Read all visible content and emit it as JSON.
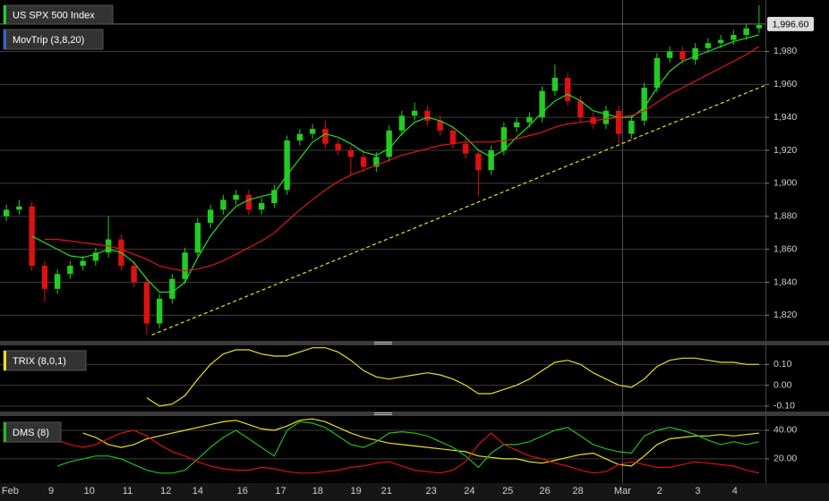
{
  "chart_data": [
    {
      "type": "candlestick",
      "title": "US SPX 500 Index",
      "indicator": "MovTrip (3,8,20)",
      "xlim": [
        -0.5,
        59.5
      ],
      "xticks": [
        {
          "value": 0.3,
          "label": "Feb"
        },
        {
          "value": 3.5,
          "label": "9"
        },
        {
          "value": 6.5,
          "label": "10"
        },
        {
          "value": 9.5,
          "label": "11"
        },
        {
          "value": 12.5,
          "label": "12"
        },
        {
          "value": 15,
          "label": "14"
        },
        {
          "value": 18.5,
          "label": "16"
        },
        {
          "value": 21.5,
          "label": "17"
        },
        {
          "value": 24.4,
          "label": "18"
        },
        {
          "value": 27.4,
          "label": "19"
        },
        {
          "value": 29.8,
          "label": "21"
        },
        {
          "value": 33.3,
          "label": "23"
        },
        {
          "value": 36.3,
          "label": "24"
        },
        {
          "value": 39.3,
          "label": "25"
        },
        {
          "value": 42.2,
          "label": "26"
        },
        {
          "value": 44.8,
          "label": "28"
        },
        {
          "value": 48.3,
          "label": "Mar"
        },
        {
          "value": 51.2,
          "label": "2"
        },
        {
          "value": 54.2,
          "label": "3"
        },
        {
          "value": 57.1,
          "label": "4"
        }
      ],
      "ylim": [
        1805,
        2009
      ],
      "yticks": [
        {
          "value": 1820,
          "label": "1,820"
        },
        {
          "value": 1840,
          "label": "1,840"
        },
        {
          "value": 1860,
          "label": "1,860"
        },
        {
          "value": 1880,
          "label": "1,880"
        },
        {
          "value": 1900,
          "label": "1,900"
        },
        {
          "value": 1920,
          "label": "1,920"
        },
        {
          "value": 1940,
          "label": "1,940"
        },
        {
          "value": 1960,
          "label": "1,960"
        },
        {
          "value": 1980,
          "label": "1,980"
        }
      ],
      "up_color": "#22cc22",
      "down_color": "#dd1111",
      "open": [
        1880,
        1884,
        1886,
        1850,
        1836,
        1845,
        1850,
        1853,
        1858,
        1866,
        1850,
        1840,
        1815,
        1830,
        1842,
        1858,
        1876,
        1884,
        1890,
        1893,
        1884,
        1888,
        1896,
        1926,
        1930,
        1933,
        1924,
        1920,
        1916,
        1910,
        1916,
        1932,
        1941,
        1944,
        1938,
        1932,
        1924,
        1918,
        1908,
        1920,
        1934,
        1937,
        1940,
        1956,
        1964,
        1950,
        1940,
        1936,
        1944,
        1930,
        1938,
        1958,
        1976,
        1980,
        1975,
        1982,
        1985,
        1987,
        1990,
        1994
      ],
      "high": [
        1887,
        1890,
        1889,
        1853,
        1848,
        1853,
        1856,
        1861,
        1880,
        1869,
        1853,
        1843,
        1833,
        1845,
        1861,
        1879,
        1887,
        1893,
        1896,
        1896,
        1891,
        1899,
        1929,
        1933,
        1936,
        1938,
        1927,
        1923,
        1919,
        1919,
        1935,
        1944,
        1949,
        1947,
        1941,
        1935,
        1927,
        1921,
        1923,
        1937,
        1940,
        1943,
        1959,
        1972,
        1967,
        1953,
        1943,
        1947,
        1947,
        1941,
        1961,
        1979,
        1983,
        1983,
        1985,
        1988,
        1990,
        1993,
        1997,
        2008
      ],
      "low": [
        1877,
        1881,
        1847,
        1828,
        1833,
        1842,
        1847,
        1850,
        1855,
        1847,
        1837,
        1808,
        1812,
        1827,
        1839,
        1855,
        1873,
        1881,
        1887,
        1881,
        1881,
        1885,
        1893,
        1923,
        1927,
        1921,
        1917,
        1905,
        1907,
        1907,
        1913,
        1929,
        1938,
        1935,
        1929,
        1921,
        1915,
        1892,
        1905,
        1917,
        1931,
        1934,
        1937,
        1953,
        1947,
        1937,
        1933,
        1933,
        1924,
        1927,
        1935,
        1955,
        1973,
        1972,
        1972,
        1979,
        1982,
        1984,
        1987,
        1991
      ],
      "close": [
        1884,
        1886,
        1850,
        1836,
        1845,
        1850,
        1853,
        1858,
        1866,
        1850,
        1840,
        1815,
        1830,
        1842,
        1858,
        1876,
        1884,
        1890,
        1893,
        1884,
        1888,
        1896,
        1926,
        1930,
        1933,
        1924,
        1920,
        1916,
        1910,
        1916,
        1932,
        1941,
        1944,
        1938,
        1932,
        1924,
        1918,
        1908,
        1920,
        1934,
        1937,
        1940,
        1956,
        1964,
        1950,
        1940,
        1936,
        1944,
        1930,
        1938,
        1958,
        1976,
        1980,
        1975,
        1982,
        1985,
        1987,
        1990,
        1994,
        1996
      ],
      "overlays": [
        {
          "color": "#22dd22",
          "values": [
            null,
            null,
            1868,
            1864,
            1860,
            1856,
            1855,
            1857,
            1860,
            1858,
            1852,
            1842,
            1834,
            1834,
            1840,
            1855,
            1868,
            1878,
            1886,
            1890,
            1892,
            1894,
            1905,
            1915,
            1925,
            1930,
            1928,
            1924,
            1919,
            1917,
            1921,
            1930,
            1937,
            1940,
            1938,
            1934,
            1928,
            1920,
            1916,
            1920,
            1928,
            1935,
            1943,
            1950,
            1954,
            1950,
            1944,
            1942,
            1940,
            1940,
            1946,
            1958,
            1968,
            1974,
            1977,
            1980,
            1983,
            1986,
            1988,
            1990
          ]
        },
        {
          "color": "#e01818",
          "values": [
            null,
            null,
            null,
            1866,
            1866,
            1865,
            1864,
            1863,
            1862,
            1860,
            1857,
            1854,
            1850,
            1848,
            1847,
            1848,
            1850,
            1853,
            1857,
            1861,
            1865,
            1870,
            1877,
            1884,
            1890,
            1896,
            1901,
            1905,
            1908,
            1911,
            1914,
            1917,
            1919,
            1921,
            1923,
            1924,
            1925,
            1925,
            1925,
            1926,
            1927,
            1929,
            1931,
            1934,
            1936,
            1937,
            1938,
            1939,
            1940,
            1941,
            1944,
            1949,
            1954,
            1958,
            1962,
            1966,
            1970,
            1974,
            1978,
            1983
          ]
        }
      ],
      "trendline": {
        "color": "#e8e020",
        "x": [
          11.4,
          59.5
        ],
        "y": [
          1808,
          1959.5
        ]
      },
      "last_value": 1996.6,
      "last_label": "1,996.60",
      "grid": true
    },
    {
      "type": "line",
      "title": "TRIX (8,0,1)",
      "ylim": [
        -0.126,
        0.183
      ],
      "yticks": [
        {
          "value": 0.1,
          "label": "0.10"
        },
        {
          "value": 0,
          "label": "0.00"
        },
        {
          "value": -0.1,
          "label": "-0.10"
        }
      ],
      "series": [
        {
          "color": "#e8e020",
          "values": [
            null,
            null,
            null,
            null,
            null,
            null,
            null,
            null,
            null,
            null,
            null,
            -0.06,
            -0.1,
            -0.09,
            -0.05,
            0.03,
            0.1,
            0.15,
            0.17,
            0.17,
            0.15,
            0.14,
            0.14,
            0.16,
            0.18,
            0.18,
            0.16,
            0.12,
            0.07,
            0.04,
            0.03,
            0.04,
            0.05,
            0.06,
            0.05,
            0.03,
            0.0,
            -0.04,
            -0.04,
            -0.02,
            0.0,
            0.03,
            0.07,
            0.11,
            0.12,
            0.1,
            0.06,
            0.03,
            0.0,
            -0.01,
            0.03,
            0.09,
            0.12,
            0.13,
            0.13,
            0.12,
            0.11,
            0.11,
            0.1,
            0.1
          ]
        }
      ],
      "grid": true
    },
    {
      "type": "line",
      "title": "DMS (8)",
      "ylim": [
        3,
        50
      ],
      "yticks": [
        {
          "value": 40,
          "label": "40.00"
        },
        {
          "value": 20,
          "label": "20.00"
        }
      ],
      "series": [
        {
          "color": "#e8e020",
          "values": [
            null,
            null,
            null,
            null,
            null,
            null,
            38,
            35,
            30,
            28,
            30,
            34,
            36,
            38,
            40,
            42,
            44,
            46,
            47,
            44,
            41,
            40,
            43,
            47,
            48,
            46,
            42,
            38,
            35,
            33,
            31,
            30,
            29,
            28,
            27,
            26,
            25,
            22,
            21,
            20,
            20,
            18,
            17,
            19,
            21,
            23,
            24,
            20,
            16,
            15,
            22,
            30,
            34,
            35,
            36,
            36,
            37,
            36,
            37,
            38
          ]
        },
        {
          "color": "#22bb22",
          "values": [
            null,
            null,
            null,
            null,
            15,
            18,
            20,
            22,
            22,
            20,
            16,
            12,
            10,
            10,
            12,
            20,
            28,
            35,
            40,
            34,
            28,
            22,
            40,
            46,
            45,
            42,
            36,
            30,
            28,
            32,
            38,
            39,
            38,
            36,
            32,
            28,
            22,
            14,
            24,
            30,
            30,
            32,
            36,
            40,
            42,
            36,
            30,
            27,
            25,
            24,
            36,
            40,
            42,
            40,
            37,
            33,
            30,
            32,
            30,
            32
          ]
        },
        {
          "color": "#dd1111",
          "values": [
            null,
            null,
            40,
            36,
            33,
            30,
            28,
            30,
            34,
            38,
            40,
            36,
            30,
            25,
            22,
            18,
            15,
            13,
            12,
            12,
            14,
            13,
            11,
            10,
            10,
            11,
            12,
            14,
            15,
            17,
            18,
            15,
            12,
            11,
            10,
            12,
            18,
            30,
            38,
            30,
            26,
            22,
            20,
            17,
            15,
            12,
            10,
            11,
            16,
            18,
            16,
            14,
            14,
            16,
            18,
            17,
            16,
            15,
            12,
            10
          ]
        }
      ],
      "grid": true
    }
  ]
}
